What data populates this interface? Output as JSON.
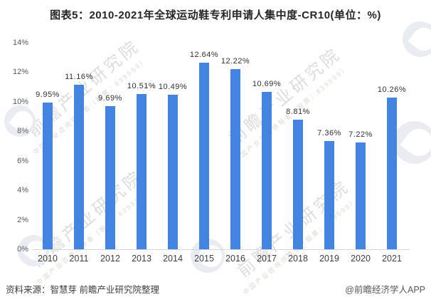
{
  "title": "图表5：2010-2021年全球运动鞋专利申请人集中度-CR10(单位：%)",
  "chart_data": {
    "type": "bar",
    "title": "图表5：2010-2021年全球运动鞋专利申请人集中度-CR10(单位：%)",
    "categories": [
      "2010",
      "2011",
      "2012",
      "2013",
      "2014",
      "2015",
      "2016",
      "2017",
      "2018",
      "2019",
      "2020",
      "2021"
    ],
    "values": [
      9.95,
      11.16,
      9.69,
      10.51,
      10.49,
      12.64,
      12.22,
      10.69,
      8.81,
      7.36,
      7.22,
      10.26
    ],
    "value_labels": [
      "9.95%",
      "11.16%",
      "9.69%",
      "10.51%",
      "10.49%",
      "12.64%",
      "12.22%",
      "10.69%",
      "8.81%",
      "7.36%",
      "7.22%",
      "10.26%"
    ],
    "xlabel": "",
    "ylabel": "",
    "ylim": [
      0,
      14
    ],
    "ytick_step": 2,
    "ytick_labels": [
      "0%",
      "2%",
      "4%",
      "6%",
      "8%",
      "10%",
      "12%",
      "14%"
    ],
    "grid": false,
    "legend": "none",
    "bar_color": "#4384e1"
  },
  "footer": {
    "source": "资料来源：智慧芽 前瞻产业研究院整理",
    "credit": "@前瞻经济学人APP"
  },
  "watermark": {
    "text": "前瞻产业研究院",
    "subtext": "中国产业咨询领导者（股票：839599）"
  },
  "colors": {
    "bar": "#4384e1",
    "title_text": "#262626",
    "value_label": "#333333",
    "y_tick_label": "#595959",
    "x_tick_label": "#404040",
    "axis_line": "#d8d8d8",
    "watermark_text": "#d5d5d5",
    "logo_circle": "#e9edf2"
  }
}
